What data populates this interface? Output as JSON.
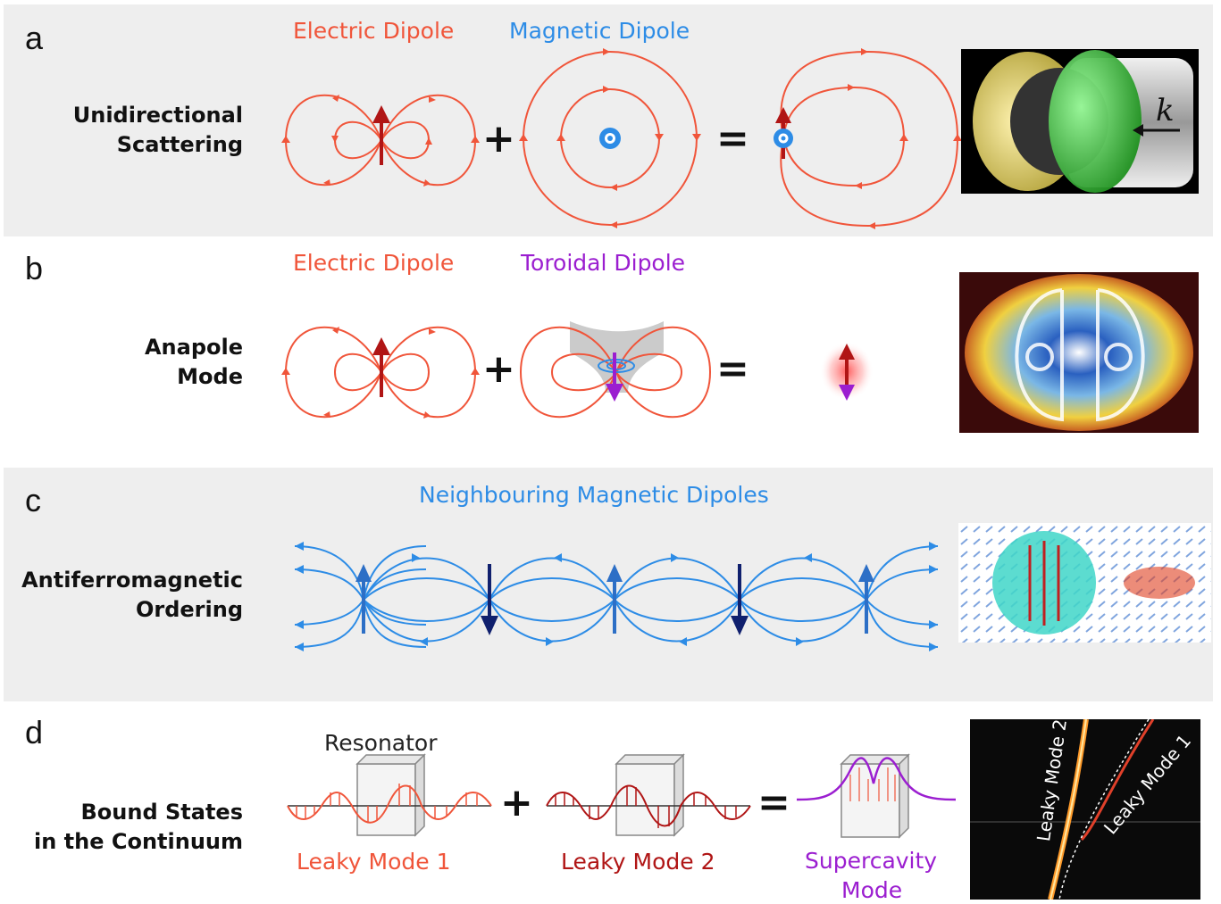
{
  "panels": [
    {
      "letter": "a",
      "label_lines": [
        "Unidirectional",
        "Scattering"
      ],
      "captions": [
        "Electric Dipole",
        "Magnetic Dipole"
      ],
      "operators": [
        "+",
        "="
      ]
    },
    {
      "letter": "b",
      "label_lines": [
        "Anapole",
        "Mode"
      ],
      "captions": [
        "Electric Dipole",
        "Toroidal Dipole"
      ],
      "operators": [
        "+",
        "="
      ]
    },
    {
      "letter": "c",
      "label_lines": [
        "Antiferromagnetic",
        "Ordering"
      ],
      "captions": [
        "Neighbouring Magnetic Dipoles"
      ]
    },
    {
      "letter": "d",
      "label_lines": [
        "Bound States",
        "in the Continuum"
      ],
      "captions": [
        "Resonator",
        "Leaky Mode 1",
        "Leaky Mode 2",
        "Supercavity",
        "Mode"
      ],
      "operators": [
        "+",
        "="
      ],
      "thumb_labels": [
        "Leaky Mode 2",
        "Leaky Mode 1"
      ]
    }
  ],
  "thumb_k": "k",
  "colors": {
    "electric": "#f0553a",
    "magnetic": "#2d8ce6",
    "toroidal": "#9b1ed0",
    "dark_red": "#b01515",
    "navy": "#10206e",
    "panel_bg": "#eeeeee"
  }
}
